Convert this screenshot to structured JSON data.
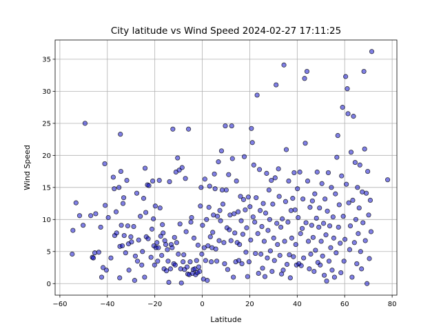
{
  "chart_data": {
    "type": "scatter",
    "title": "City latitude vs Wind Speed 2024-02-27 17:11:25",
    "xlabel": "Latitude",
    "ylabel": "Wind Speed",
    "xlim": [
      -62,
      82
    ],
    "ylim": [
      -1.8,
      38
    ],
    "xticks": [
      -60,
      -40,
      -20,
      0,
      20,
      40,
      60,
      80
    ],
    "yticks": [
      0,
      5,
      10,
      15,
      20,
      25,
      30,
      35
    ],
    "grid": true,
    "marker_color": "#0000cc",
    "marker_alpha": 0.5,
    "marker_edge": "#000000",
    "points": [
      [
        -54.8,
        4.6
      ],
      [
        -54.5,
        8.3
      ],
      [
        -53.2,
        12.6
      ],
      [
        -51.7,
        10.6
      ],
      [
        -50.2,
        9.1
      ],
      [
        -49.4,
        25.0
      ],
      [
        -47.0,
        10.6
      ],
      [
        -46.3,
        4.1
      ],
      [
        -45.9,
        4.0
      ],
      [
        -45.3,
        4.8
      ],
      [
        -44.9,
        10.9
      ],
      [
        -43.6,
        4.9
      ],
      [
        -42.8,
        8.8
      ],
      [
        -42.4,
        1.0
      ],
      [
        -41.8,
        2.5
      ],
      [
        -41.1,
        18.7
      ],
      [
        -40.9,
        12.2
      ],
      [
        -40.4,
        2.1
      ],
      [
        -39.6,
        10.3
      ],
      [
        -38.5,
        4.0
      ],
      [
        -37.5,
        16.6
      ],
      [
        -37.1,
        14.8
      ],
      [
        -36.9,
        7.5
      ],
      [
        -36.3,
        11.2
      ],
      [
        -36.1,
        7.9
      ],
      [
        -35.1,
        15.0
      ],
      [
        -34.8,
        0.9
      ],
      [
        -34.7,
        5.8
      ],
      [
        -34.5,
        23.3
      ],
      [
        -34.3,
        17.5
      ],
      [
        -34.1,
        9.1
      ],
      [
        -33.7,
        5.9
      ],
      [
        -33.4,
        12.5
      ],
      [
        -33.1,
        13.4
      ],
      [
        -32.9,
        7.5
      ],
      [
        -32.3,
        4.8
      ],
      [
        -31.8,
        16.1
      ],
      [
        -31.4,
        9.0
      ],
      [
        -31.1,
        6.2
      ],
      [
        -30.9,
        2.1
      ],
      [
        -30.1,
        7.3
      ],
      [
        -29.8,
        6.5
      ],
      [
        -28.9,
        8.9
      ],
      [
        -28.5,
        0.5
      ],
      [
        -28.2,
        4.3
      ],
      [
        -27.6,
        14.1
      ],
      [
        -27.3,
        3.5
      ],
      [
        -26.8,
        6.8
      ],
      [
        -26.1,
        10.5
      ],
      [
        -25.5,
        2.9
      ],
      [
        -25.2,
        5.0
      ],
      [
        -24.7,
        13.3
      ],
      [
        -24.3,
        1.0
      ],
      [
        -24.1,
        18.0
      ],
      [
        -23.8,
        11.1
      ],
      [
        -23.6,
        7.3
      ],
      [
        -23.1,
        15.4
      ],
      [
        -22.8,
        7.0
      ],
      [
        -22.5,
        15.3
      ],
      [
        -21.6,
        4.1
      ],
      [
        -21.2,
        8.5
      ],
      [
        -20.9,
        16.0
      ],
      [
        -20.6,
        10.1
      ],
      [
        -20.4,
        5.9
      ],
      [
        -20.1,
        2.9
      ],
      [
        -19.8,
        12.1
      ],
      [
        -19.5,
        5.6
      ],
      [
        -19.1,
        6.4
      ],
      [
        -18.8,
        3.5
      ],
      [
        -18.5,
        5.6
      ],
      [
        -18.1,
        16.1
      ],
      [
        -17.8,
        11.8
      ],
      [
        -17.5,
        7.4
      ],
      [
        -17.1,
        4.4
      ],
      [
        -16.8,
        9.2
      ],
      [
        -16.5,
        7.9
      ],
      [
        -16.1,
        2.3
      ],
      [
        -15.8,
        6.7
      ],
      [
        -15.4,
        6.1
      ],
      [
        -15.1,
        2.0
      ],
      [
        -14.7,
        5.3
      ],
      [
        -14.4,
        3.5
      ],
      [
        -14.1,
        0.2
      ],
      [
        -13.8,
        15.9
      ],
      [
        -13.4,
        2.3
      ],
      [
        -13.1,
        6.1
      ],
      [
        -12.7,
        5.6
      ],
      [
        -12.4,
        24.1
      ],
      [
        -12.0,
        3.1
      ],
      [
        -11.7,
        7.2
      ],
      [
        -11.4,
        2.9
      ],
      [
        -11.1,
        17.4
      ],
      [
        -10.8,
        6.4
      ],
      [
        -10.4,
        19.6
      ],
      [
        -10.1,
        4.6
      ],
      [
        -9.7,
        17.7
      ],
      [
        -9.4,
        9.3
      ],
      [
        -9.1,
        2.3
      ],
      [
        -8.8,
        0.1
      ],
      [
        -8.5,
        18.1
      ],
      [
        -8.1,
        3.4
      ],
      [
        -7.8,
        4.5
      ],
      [
        -7.5,
        2.2
      ],
      [
        -7.1,
        16.4
      ],
      [
        -6.8,
        8.1
      ],
      [
        -6.4,
        2.6
      ],
      [
        -6.1,
        1.5
      ],
      [
        -5.8,
        24.1
      ],
      [
        -5.5,
        1.4
      ],
      [
        -5.1,
        3.4
      ],
      [
        -4.8,
        9.6
      ],
      [
        -4.5,
        10.3
      ],
      [
        -4.1,
        1.6
      ],
      [
        -3.8,
        2.2
      ],
      [
        -3.5,
        7.1
      ],
      [
        -3.1,
        2.3
      ],
      [
        -2.8,
        1.4
      ],
      [
        -2.4,
        3.6
      ],
      [
        -2.1,
        1.7
      ],
      [
        -1.8,
        6.0
      ],
      [
        -1.5,
        2.6
      ],
      [
        -1.1,
        1.9
      ],
      [
        -0.8,
        12.1
      ],
      [
        -0.5,
        15.0
      ],
      [
        -0.2,
        4.6
      ],
      [
        0.1,
        9.1
      ],
      [
        0.5,
        0.7
      ],
      [
        0.8,
        5.6
      ],
      [
        1.1,
        16.3
      ],
      [
        1.4,
        3.6
      ],
      [
        1.8,
        10.0
      ],
      [
        2.1,
        0.5
      ],
      [
        2.4,
        5.9
      ],
      [
        2.8,
        11.9
      ],
      [
        3.1,
        15.2
      ],
      [
        3.4,
        7.3
      ],
      [
        3.8,
        3.4
      ],
      [
        4.1,
        5.6
      ],
      [
        4.4,
        8.0
      ],
      [
        4.7,
        10.7
      ],
      [
        5.1,
        17.1
      ],
      [
        5.4,
        14.8
      ],
      [
        5.7,
        5.4
      ],
      [
        6.1,
        3.5
      ],
      [
        6.4,
        10.5
      ],
      [
        6.8,
        19.0
      ],
      [
        7.1,
        6.7
      ],
      [
        7.4,
        11.4
      ],
      [
        7.7,
        9.8
      ],
      [
        8.1,
        20.7
      ],
      [
        8.4,
        14.6
      ],
      [
        8.7,
        12.4
      ],
      [
        9.1,
        6.4
      ],
      [
        9.4,
        3.1
      ],
      [
        9.7,
        24.6
      ],
      [
        10.1,
        14.6
      ],
      [
        10.4,
        8.7
      ],
      [
        10.7,
        2.2
      ],
      [
        11.1,
        17.0
      ],
      [
        11.4,
        8.4
      ],
      [
        11.7,
        10.7
      ],
      [
        12.1,
        6.7
      ],
      [
        12.4,
        24.6
      ],
      [
        12.7,
        19.5
      ],
      [
        13.1,
        1.0
      ],
      [
        13.4,
        10.9
      ],
      [
        13.7,
        7.9
      ],
      [
        14.1,
        3.4
      ],
      [
        14.4,
        16.0
      ],
      [
        14.7,
        6.4
      ],
      [
        15.1,
        11.2
      ],
      [
        15.4,
        3.6
      ],
      [
        15.7,
        6.1
      ],
      [
        16.1,
        13.6
      ],
      [
        16.4,
        9.8
      ],
      [
        16.7,
        3.1
      ],
      [
        17.1,
        7.7
      ],
      [
        17.4,
        13.1
      ],
      [
        17.7,
        19.8
      ],
      [
        18.1,
        11.5
      ],
      [
        18.4,
        4.9
      ],
      [
        18.7,
        8.7
      ],
      [
        19.1,
        1.1
      ],
      [
        19.4,
        13.5
      ],
      [
        19.7,
        3.4
      ],
      [
        20.1,
        12.0
      ],
      [
        20.4,
        6.8
      ],
      [
        20.7,
        24.2
      ],
      [
        21.1,
        22.0
      ],
      [
        21.4,
        10.4
      ],
      [
        21.7,
        18.5
      ],
      [
        22.1,
        9.6
      ],
      [
        22.4,
        4.7
      ],
      [
        22.7,
        13.4
      ],
      [
        23.1,
        29.4
      ],
      [
        23.4,
        7.8
      ],
      [
        23.7,
        1.6
      ],
      [
        24.1,
        17.8
      ],
      [
        24.4,
        11.4
      ],
      [
        24.7,
        4.6
      ],
      [
        25.1,
        8.9
      ],
      [
        25.4,
        2.4
      ],
      [
        25.7,
        12.5
      ],
      [
        26.1,
        6.6
      ],
      [
        26.4,
        1.1
      ],
      [
        26.7,
        11.0
      ],
      [
        27.1,
        17.2
      ],
      [
        27.4,
        4.0
      ],
      [
        27.7,
        8.3
      ],
      [
        28.1,
        14.6
      ],
      [
        28.4,
        10.0
      ],
      [
        28.7,
        5.1
      ],
      [
        29.1,
        16.1
      ],
      [
        29.4,
        1.9
      ],
      [
        29.7,
        12.4
      ],
      [
        30.1,
        7.1
      ],
      [
        30.4,
        3.6
      ],
      [
        30.7,
        16.5
      ],
      [
        31.1,
        31.0
      ],
      [
        31.4,
        9.4
      ],
      [
        31.7,
        6.1
      ],
      [
        32.1,
        17.9
      ],
      [
        32.4,
        13.6
      ],
      [
        32.7,
        4.4
      ],
      [
        33.1,
        8.8
      ],
      [
        33.4,
        1.5
      ],
      [
        33.7,
        10.1
      ],
      [
        34.1,
        2.1
      ],
      [
        34.4,
        34.1
      ],
      [
        34.7,
        6.6
      ],
      [
        35.1,
        12.8
      ],
      [
        35.4,
        20.9
      ],
      [
        35.7,
        3.0
      ],
      [
        36.1,
        9.6
      ],
      [
        36.4,
        16.0
      ],
      [
        36.7,
        4.5
      ],
      [
        37.1,
        0.9
      ],
      [
        37.4,
        11.4
      ],
      [
        37.7,
        7.1
      ],
      [
        38.1,
        13.3
      ],
      [
        38.4,
        4.2
      ],
      [
        38.7,
        17.3
      ],
      [
        39.1,
        11.5
      ],
      [
        39.4,
        6.1
      ],
      [
        39.7,
        2.9
      ],
      [
        40.1,
        14.8
      ],
      [
        40.4,
        10.3
      ],
      [
        40.7,
        3.1
      ],
      [
        41.1,
        17.4
      ],
      [
        41.4,
        7.8
      ],
      [
        41.7,
        2.8
      ],
      [
        42.1,
        8.6
      ],
      [
        42.4,
        13.2
      ],
      [
        42.7,
        4.0
      ],
      [
        43.1,
        32.0
      ],
      [
        43.4,
        21.9
      ],
      [
        43.7,
        9.5
      ],
      [
        44.1,
        33.1
      ],
      [
        44.4,
        16.0
      ],
      [
        44.7,
        6.6
      ],
      [
        45.1,
        2.3
      ],
      [
        45.4,
        11.9
      ],
      [
        45.7,
        4.6
      ],
      [
        46.1,
        9.1
      ],
      [
        46.4,
        12.9
      ],
      [
        46.7,
        7.2
      ],
      [
        47.1,
        1.9
      ],
      [
        47.4,
        14.0
      ],
      [
        47.7,
        5.2
      ],
      [
        48.1,
        10.2
      ],
      [
        48.4,
        17.4
      ],
      [
        48.7,
        3.3
      ],
      [
        49.1,
        8.8
      ],
      [
        49.4,
        11.8
      ],
      [
        49.7,
        2.9
      ],
      [
        50.1,
        6.6
      ],
      [
        50.4,
        15.6
      ],
      [
        50.7,
        4.3
      ],
      [
        51.1,
        9.4
      ],
      [
        51.4,
        1.3
      ],
      [
        51.7,
        13.2
      ],
      [
        52.1,
        7.6
      ],
      [
        52.4,
        0.4
      ],
      [
        52.7,
        11.3
      ],
      [
        53.1,
        17.3
      ],
      [
        53.4,
        3.5
      ],
      [
        53.7,
        9.0
      ],
      [
        54.1,
        5.6
      ],
      [
        54.4,
        15.0
      ],
      [
        54.7,
        2.1
      ],
      [
        55.1,
        10.4
      ],
      [
        55.4,
        7.1
      ],
      [
        55.7,
        1.0
      ],
      [
        56.1,
        14.0
      ],
      [
        56.4,
        4.8
      ],
      [
        56.7,
        19.7
      ],
      [
        57.1,
        23.1
      ],
      [
        57.4,
        8.8
      ],
      [
        57.7,
        12.3
      ],
      [
        58.1,
        6.3
      ],
      [
        58.4,
        1.7
      ],
      [
        58.7,
        16.8
      ],
      [
        59.1,
        27.5
      ],
      [
        59.4,
        10.5
      ],
      [
        59.7,
        3.5
      ],
      [
        60.1,
        6.9
      ],
      [
        60.4,
        32.3
      ],
      [
        60.7,
        15.5
      ],
      [
        61.1,
        30.4
      ],
      [
        61.4,
        26.5
      ],
      [
        61.7,
        12.6
      ],
      [
        62.1,
        5.3
      ],
      [
        62.4,
        9.0
      ],
      [
        62.7,
        20.5
      ],
      [
        63.1,
        1.0
      ],
      [
        63.4,
        13.0
      ],
      [
        63.7,
        26.1
      ],
      [
        64.1,
        6.4
      ],
      [
        64.4,
        18.9
      ],
      [
        64.7,
        10.0
      ],
      [
        65.1,
        3.1
      ],
      [
        65.4,
        15.0
      ],
      [
        65.7,
        7.8
      ],
      [
        66.1,
        11.8
      ],
      [
        66.4,
        18.5
      ],
      [
        66.7,
        5.0
      ],
      [
        67.1,
        2.3
      ],
      [
        67.4,
        14.3
      ],
      [
        67.7,
        9.5
      ],
      [
        68.1,
        33.1
      ],
      [
        68.4,
        21.0
      ],
      [
        68.7,
        6.7
      ],
      [
        69.1,
        14.1
      ],
      [
        69.4,
        0.0
      ],
      [
        69.7,
        17.5
      ],
      [
        70.1,
        10.7
      ],
      [
        70.4,
        3.9
      ],
      [
        70.8,
        13.0
      ],
      [
        71.1,
        8.1
      ],
      [
        71.4,
        36.2
      ],
      [
        78.1,
        16.2
      ]
    ]
  }
}
